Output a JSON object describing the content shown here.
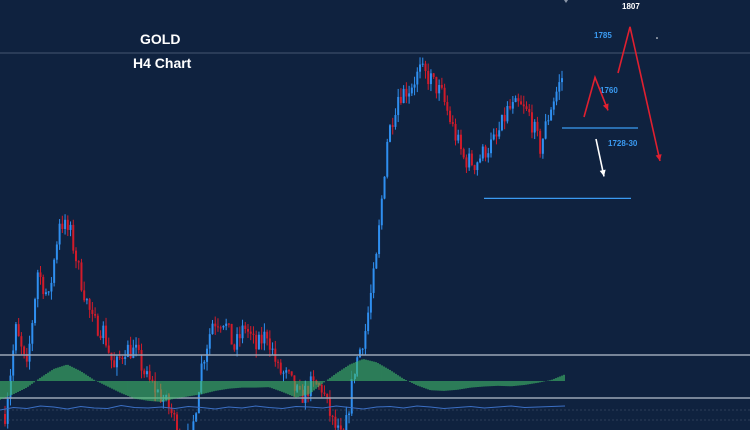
{
  "chart_data": {
    "type": "candlestick",
    "title": "GOLD",
    "subtitle": "H4 Chart",
    "colors": {
      "background": "#0f223f",
      "bull": "#2f8ff0",
      "bear": "#d11b2a",
      "projection": "#e02030",
      "level_line": "#3b9bf2",
      "osc_positive": "#3fb968",
      "osc_signal": "#e02030",
      "panel_separator": "#9aa6b6",
      "lower_line": "#3b6fc4"
    },
    "price_levels": [
      {
        "value": 1760,
        "label": "1760"
      },
      {
        "value": 1728,
        "label": "1728-30"
      }
    ],
    "projections": [
      {
        "label": "1785",
        "color": "#e02030",
        "path": [
          1765,
          1783,
          1768
        ]
      },
      {
        "label": "1807",
        "color": "#e02030",
        "path": [
          1785,
          1806,
          1745
        ]
      },
      {
        "label": "",
        "color": "#ffffff",
        "path": [
          1755,
          1738
        ]
      }
    ],
    "series": [
      {
        "name": "price",
        "values": [
          1630,
          1668,
          1650,
          1695,
          1682,
          1718,
          1712,
          1690,
          1672,
          1668,
          1650,
          1660,
          1658,
          1646,
          1640,
          1633,
          1622,
          1617,
          1652,
          1672,
          1673,
          1660,
          1670,
          1660,
          1667,
          1650,
          1646,
          1637,
          1643,
          1642,
          1626,
          1617,
          1651,
          1668,
          1700,
          1755,
          1775,
          1778,
          1786,
          1782,
          1775,
          1760,
          1746,
          1744,
          1750,
          1755,
          1768,
          1770,
          1766,
          1751,
          1770,
          1783
        ]
      }
    ],
    "oscillator": [
      -0.85,
      -0.6,
      -0.3,
      0.15,
      0.55,
      0.75,
      0.45,
      0.05,
      -0.25,
      -0.55,
      -0.8,
      -0.9,
      -0.95,
      -0.8,
      -0.7,
      -0.6,
      -0.45,
      -0.35,
      -0.3,
      -0.3,
      -0.28,
      -0.5,
      -0.75,
      -0.6,
      -0.1,
      0.35,
      0.75,
      1.0,
      0.85,
      0.5,
      0.1,
      -0.2,
      -0.42,
      -0.45,
      -0.4,
      -0.3,
      -0.25,
      -0.22,
      -0.24,
      -0.18,
      -0.08,
      0.05,
      0.3
    ],
    "lower_indicator": [
      0.2,
      0.45,
      0.35,
      0.6,
      0.5,
      0.3,
      0.55,
      0.4,
      0.35,
      0.65,
      0.45,
      0.4,
      0.5,
      0.35,
      0.55,
      0.45,
      0.3,
      0.5,
      0.4,
      0.6,
      0.45,
      0.35,
      0.55,
      0.5,
      0.4,
      0.6,
      0.45,
      0.3,
      0.5,
      0.55,
      0.4,
      0.6,
      0.5,
      0.35,
      0.45,
      0.55,
      0.4,
      0.5,
      0.6,
      0.45,
      0.5,
      0.55,
      0.6
    ]
  }
}
